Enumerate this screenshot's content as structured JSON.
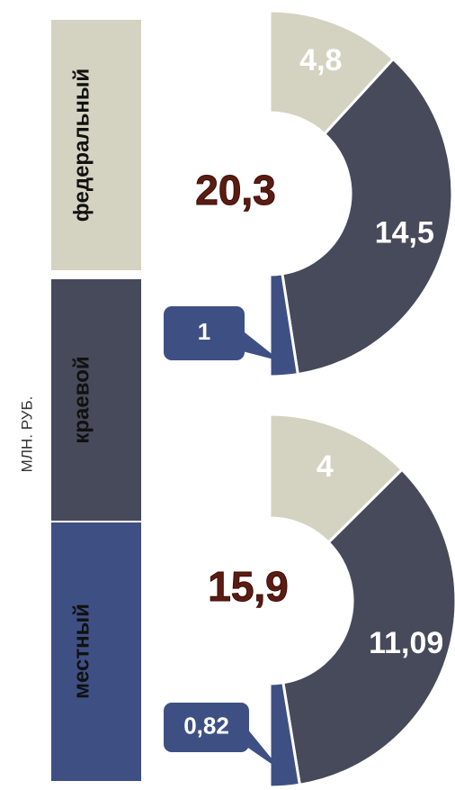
{
  "axis_label": "МЛН. РУБ.",
  "chart_data": [
    {
      "type": "pie",
      "categories": [
        "федеральный",
        "краевой",
        "местный"
      ],
      "values": [
        4.8,
        14.5,
        1
      ],
      "value_labels": [
        "4,8",
        "14,5",
        "1"
      ],
      "colors": [
        "#d4d3c1",
        "#474a5a",
        "#3e5083"
      ],
      "center_label": "20,3"
    },
    {
      "type": "pie",
      "categories": [
        "федеральный",
        "краевой",
        "местный"
      ],
      "values": [
        4,
        11.09,
        0.82
      ],
      "value_labels": [
        "4",
        "11,09",
        "0,82"
      ],
      "colors": [
        "#d4d3c1",
        "#474a5a",
        "#3e5083"
      ],
      "center_label": "15,9"
    }
  ]
}
